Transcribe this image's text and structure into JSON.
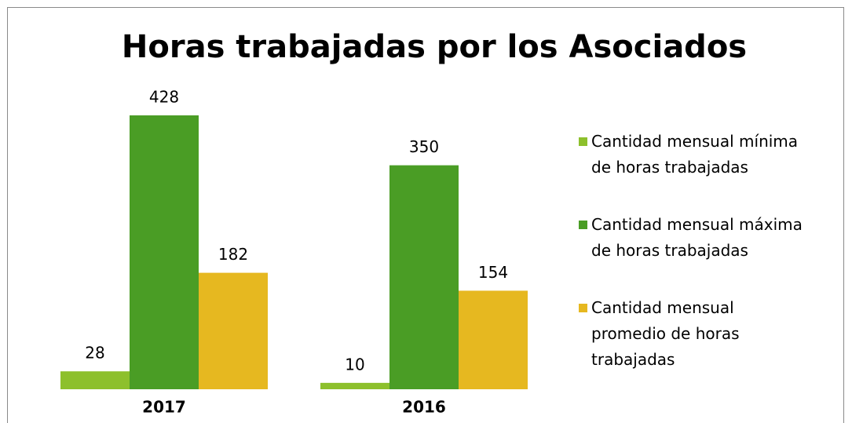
{
  "chart_data": {
    "type": "bar",
    "title": "Horas trabajadas por los Asociados",
    "categories": [
      "2017",
      "2016"
    ],
    "series": [
      {
        "name": "Cantidad mensual mínima de horas trabajadas",
        "color": "#8dc02c",
        "values": [
          28,
          10
        ]
      },
      {
        "name": "Cantidad mensual máxima de horas trabajadas",
        "color": "#4a9d25",
        "values": [
          428,
          350
        ]
      },
      {
        "name": "Cantidad mensual promedio de horas trabajadas",
        "color": "#e6b820",
        "values": [
          182,
          154
        ]
      }
    ],
    "legend": "right"
  }
}
